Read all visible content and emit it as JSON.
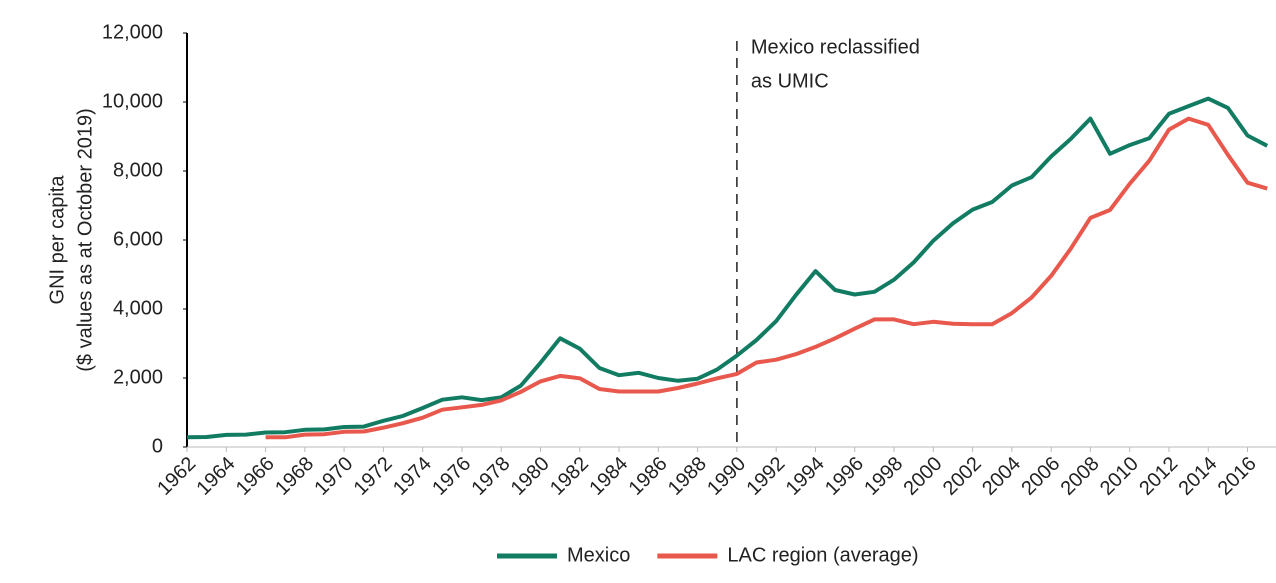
{
  "chart_data": {
    "type": "line",
    "ylabel": [
      "GNI per capita",
      "($ values as at October 2019)"
    ],
    "x": [
      1962,
      1963,
      1964,
      1965,
      1966,
      1967,
      1968,
      1969,
      1970,
      1971,
      1972,
      1973,
      1974,
      1975,
      1976,
      1977,
      1978,
      1979,
      1980,
      1981,
      1982,
      1983,
      1984,
      1985,
      1986,
      1987,
      1988,
      1989,
      1990,
      1991,
      1992,
      1993,
      1994,
      1995,
      1996,
      1997,
      1998,
      1999,
      2000,
      2001,
      2002,
      2003,
      2004,
      2005,
      2006,
      2007,
      2008,
      2009,
      2010,
      2011,
      2012,
      2013,
      2014,
      2015,
      2016,
      2017
    ],
    "series": [
      {
        "name": "Mexico",
        "color": "#127c63",
        "values": [
          280,
          290,
          350,
          360,
          420,
          430,
          500,
          510,
          580,
          590,
          760,
          900,
          1130,
          1370,
          1440,
          1360,
          1440,
          1780,
          2440,
          3150,
          2850,
          2290,
          2080,
          2150,
          2000,
          1920,
          1980,
          2250,
          2650,
          3100,
          3650,
          4400,
          5100,
          4550,
          4420,
          4500,
          4850,
          5350,
          5980,
          6480,
          6880,
          7100,
          7580,
          7820,
          8420,
          8930,
          9520,
          8500,
          8750,
          8950,
          9660,
          9880,
          10100,
          9830,
          9030,
          8730
        ]
      },
      {
        "name": "LAC region (average)",
        "color": "#e8584c",
        "values": [
          null,
          null,
          null,
          null,
          280,
          280,
          360,
          370,
          440,
          450,
          560,
          690,
          850,
          1080,
          1150,
          1220,
          1350,
          1600,
          1900,
          2060,
          1990,
          1680,
          1610,
          1610,
          1610,
          1710,
          1840,
          1990,
          2120,
          2450,
          2530,
          2690,
          2900,
          3150,
          3430,
          3700,
          3700,
          3560,
          3630,
          3570,
          3560,
          3560,
          3880,
          4330,
          4960,
          5750,
          6640,
          6870,
          7630,
          8300,
          9200,
          9520,
          9340,
          8470,
          7660,
          7490
        ]
      }
    ],
    "xlim": [
      1962,
      2017.45
    ],
    "xticks": [
      1962,
      1964,
      1966,
      1968,
      1970,
      1972,
      1974,
      1976,
      1978,
      1980,
      1982,
      1984,
      1986,
      1988,
      1990,
      1992,
      1994,
      1996,
      1998,
      2000,
      2002,
      2004,
      2006,
      2008,
      2010,
      2012,
      2014,
      2016
    ],
    "ylim": [
      0,
      12000
    ],
    "yticks": [
      0,
      {
        "value": 2000,
        "label": "2,000"
      },
      {
        "value": 4000,
        "label": "4,000"
      },
      {
        "value": 6000,
        "label": "6,000"
      },
      {
        "value": 8000,
        "label": "8,000"
      },
      {
        "value": 10000,
        "label": "10,000"
      },
      {
        "value": 12000,
        "label": "12,000"
      }
    ],
    "annotation": {
      "x": 1990,
      "lines": [
        "Mexico reclassified",
        "as UMIC"
      ]
    },
    "legend": "bottom"
  }
}
